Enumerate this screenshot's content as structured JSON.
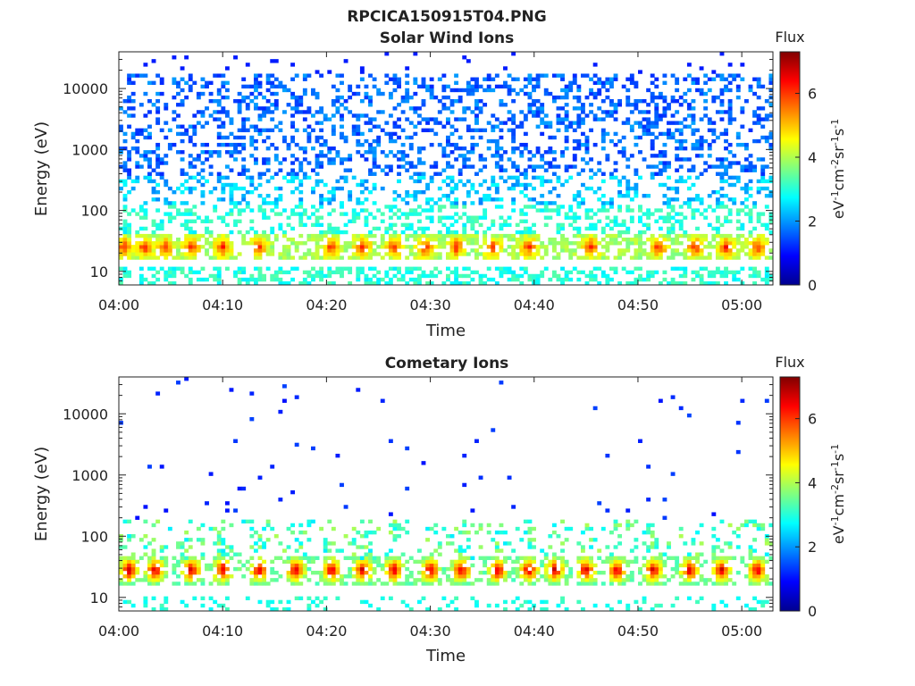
{
  "figure": {
    "title": "RPCICA150915T04.PNG"
  },
  "chart_data": [
    {
      "type": "heatmap",
      "title": "Solar Wind Ions",
      "xlabel": "Time",
      "ylabel": "Energy (eV)",
      "x_ticks": [
        "04:00",
        "04:10",
        "04:20",
        "04:30",
        "04:40",
        "04:50",
        "05:00"
      ],
      "x_range_min": [
        0,
        63
      ],
      "y_scale": "log",
      "y_ticks": [
        "10",
        "100",
        "1000",
        "10000"
      ],
      "y_range_ev": [
        6,
        40000
      ],
      "colorbar": {
        "title": "Flux",
        "label": "eV-1cm-2sr-1s-1",
        "range": [
          0,
          7.3
        ],
        "ticks": [
          "0",
          "2",
          "4",
          "6"
        ],
        "colormap": "jet"
      },
      "bands": [
        {
          "energy_ev": 25,
          "flux_peaks_min": [
            0.5,
            2.5,
            4.5,
            7,
            10,
            13.5,
            20.5,
            23.5,
            26.5,
            29.5,
            32.5,
            36,
            39.5,
            45.5,
            52,
            55.5,
            58.5,
            61.5
          ],
          "peak_flux": 6
        },
        {
          "energy_ev": "10-100",
          "background_flux": 3
        },
        {
          "energy_ev": "100-40000",
          "background_flux": 1.5
        }
      ]
    },
    {
      "type": "heatmap",
      "title": "Cometary Ions",
      "xlabel": "Time",
      "ylabel": "Energy (eV)",
      "x_ticks": [
        "04:00",
        "04:10",
        "04:20",
        "04:30",
        "04:40",
        "04:50",
        "05:00"
      ],
      "x_range_min": [
        0,
        63
      ],
      "y_scale": "log",
      "y_ticks": [
        "10",
        "100",
        "1000",
        "10000"
      ],
      "y_range_ev": [
        6,
        40000
      ],
      "colorbar": {
        "title": "Flux",
        "label": "eV-1cm-2sr-1s-1",
        "range": [
          0,
          7.3
        ],
        "ticks": [
          "0",
          "2",
          "4",
          "6"
        ],
        "colormap": "jet"
      },
      "bands": [
        {
          "energy_ev": 28,
          "flux_peaks_min": [
            1,
            3.5,
            7,
            10,
            13.5,
            17,
            20.5,
            23.5,
            26.5,
            30,
            33,
            36.5,
            39.5,
            42,
            45,
            48,
            51.5,
            55,
            58,
            61.5
          ],
          "peak_flux": 6.8
        },
        {
          "energy_ev": "15-200",
          "background_flux": 3.5
        },
        {
          "energy_ev": "200-30000",
          "background_flux": 0.8,
          "sparse": true
        }
      ]
    }
  ]
}
